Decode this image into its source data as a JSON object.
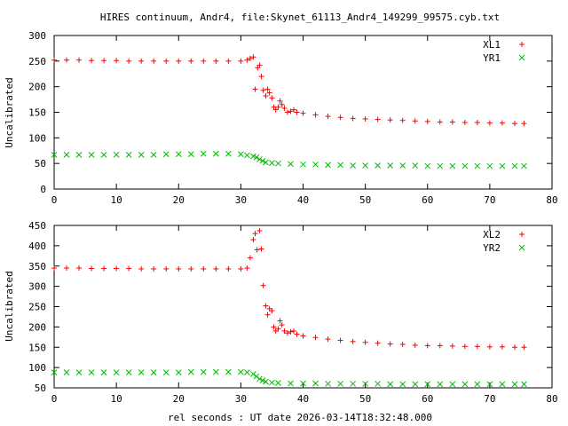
{
  "title": "HIRES continuum, Andr4, file:Skynet_61113_Andr4_149299_99575.cyb.txt",
  "xlabel": "rel seconds : UT date 2026-03-14T18:32:48.000",
  "colors": {
    "series1": "#ff0000",
    "series2": "#00bb00",
    "axes": "#000000"
  },
  "chart_data": [
    {
      "type": "scatter",
      "ylabel": "Uncalibrated",
      "xlim": [
        0,
        80
      ],
      "ylim": [
        0,
        300
      ],
      "xticks": [
        0,
        10,
        20,
        30,
        40,
        50,
        60,
        70,
        80
      ],
      "yticks": [
        0,
        50,
        100,
        150,
        200,
        250,
        300
      ],
      "grid": false,
      "legend_position": "top-right",
      "series": [
        {
          "name": "XL1",
          "marker": "plus",
          "x": [
            0,
            2,
            4,
            6,
            8,
            10,
            12,
            14,
            16,
            18,
            20,
            22,
            24,
            26,
            28,
            30,
            31,
            31.5,
            32,
            32.3,
            32.7,
            33,
            33.3,
            33.6,
            34,
            34.3,
            34.6,
            35,
            35.3,
            35.6,
            36,
            36.3,
            36.6,
            37,
            37.5,
            38,
            38.5,
            39,
            40,
            42,
            44,
            46,
            48,
            50,
            52,
            54,
            56,
            58,
            60,
            62,
            64,
            66,
            68,
            70,
            72,
            74,
            75.5
          ],
          "y": [
            252,
            252,
            252,
            251,
            251,
            251,
            250,
            250,
            250,
            250,
            250,
            250,
            250,
            250,
            250,
            250,
            252,
            255,
            258,
            195,
            237,
            242,
            220,
            193,
            182,
            195,
            188,
            178,
            160,
            155,
            160,
            172,
            165,
            158,
            150,
            152,
            155,
            150,
            148,
            145,
            142,
            140,
            138,
            137,
            136,
            135,
            134,
            133,
            132,
            131,
            131,
            130,
            130,
            129,
            129,
            128,
            128
          ]
        },
        {
          "name": "YR1",
          "marker": "cross",
          "x": [
            0,
            2,
            4,
            6,
            8,
            10,
            12,
            14,
            16,
            18,
            20,
            22,
            24,
            26,
            28,
            30,
            31,
            32,
            32.5,
            33,
            33.5,
            34,
            35,
            36,
            38,
            40,
            42,
            44,
            46,
            48,
            50,
            52,
            54,
            56,
            58,
            60,
            62,
            64,
            66,
            68,
            70,
            72,
            74,
            75.5
          ],
          "y": [
            67,
            67,
            67,
            67,
            67,
            67,
            67,
            67,
            67,
            68,
            68,
            68,
            69,
            69,
            69,
            68,
            66,
            64,
            62,
            58,
            55,
            52,
            51,
            50,
            49,
            48,
            48,
            47,
            47,
            46,
            46,
            46,
            46,
            46,
            46,
            45,
            45,
            45,
            45,
            45,
            45,
            45,
            45,
            45
          ]
        }
      ]
    },
    {
      "type": "scatter",
      "ylabel": "Uncalibrated",
      "xlim": [
        0,
        80
      ],
      "ylim": [
        50,
        450
      ],
      "xticks": [
        0,
        10,
        20,
        30,
        40,
        50,
        60,
        70,
        80
      ],
      "yticks": [
        50,
        100,
        150,
        200,
        250,
        300,
        350,
        400,
        450
      ],
      "grid": false,
      "legend_position": "top-right",
      "series": [
        {
          "name": "XL2",
          "marker": "plus",
          "x": [
            0,
            2,
            4,
            6,
            8,
            10,
            12,
            14,
            16,
            18,
            20,
            22,
            24,
            26,
            28,
            30,
            31,
            31.5,
            32,
            32.3,
            32.6,
            33,
            33.3,
            33.6,
            34,
            34.3,
            34.6,
            35,
            35.3,
            35.6,
            36,
            36.3,
            36.6,
            37,
            37.5,
            38,
            38.5,
            39,
            40,
            42,
            44,
            46,
            48,
            50,
            52,
            54,
            56,
            58,
            60,
            62,
            64,
            66,
            68,
            70,
            72,
            74,
            75.5
          ],
          "y": [
            345,
            345,
            345,
            344,
            344,
            344,
            344,
            343,
            343,
            343,
            343,
            343,
            343,
            343,
            343,
            343,
            345,
            370,
            415,
            430,
            390,
            437,
            392,
            302,
            252,
            230,
            245,
            240,
            200,
            190,
            195,
            215,
            205,
            190,
            185,
            188,
            190,
            182,
            178,
            174,
            170,
            167,
            164,
            162,
            160,
            158,
            157,
            155,
            154,
            154,
            153,
            152,
            152,
            151,
            151,
            150,
            150
          ]
        },
        {
          "name": "YR2",
          "marker": "cross",
          "x": [
            0,
            2,
            4,
            6,
            8,
            10,
            12,
            14,
            16,
            18,
            20,
            22,
            24,
            26,
            28,
            30,
            31,
            32,
            32.5,
            33,
            33.5,
            34,
            35,
            36,
            38,
            40,
            42,
            44,
            46,
            48,
            50,
            52,
            54,
            56,
            58,
            60,
            62,
            64,
            66,
            68,
            70,
            72,
            74,
            75.5
          ],
          "y": [
            88,
            88,
            88,
            88,
            88,
            88,
            88,
            88,
            88,
            88,
            88,
            89,
            89,
            89,
            89,
            89,
            88,
            84,
            78,
            72,
            68,
            65,
            63,
            62,
            61,
            61,
            61,
            60,
            60,
            60,
            60,
            60,
            59,
            59,
            59,
            59,
            59,
            59,
            59,
            59,
            59,
            59,
            59,
            59
          ]
        }
      ]
    }
  ]
}
